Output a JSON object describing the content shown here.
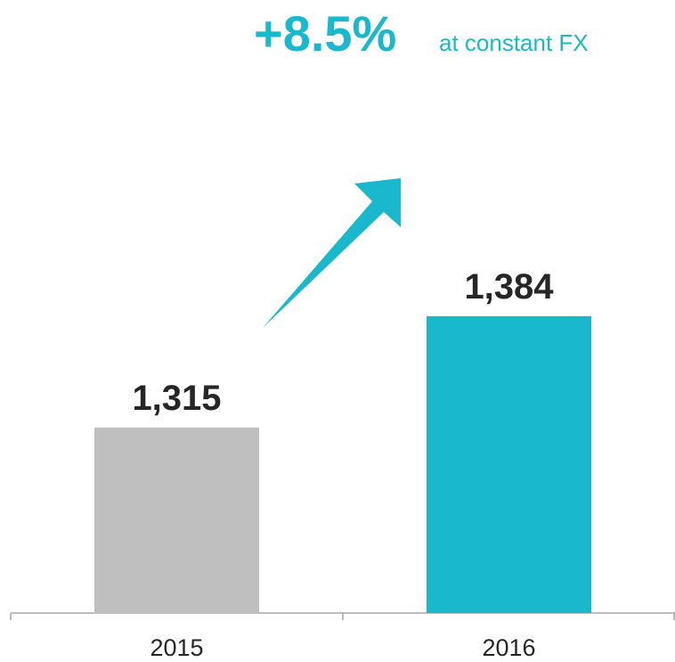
{
  "chart_data": {
    "type": "bar",
    "title": "+8.5%",
    "subtitle": "at constant FX",
    "categories": [
      "2015",
      "2016"
    ],
    "values": [
      1315,
      1384
    ],
    "value_labels": [
      "1,315",
      "1,384"
    ],
    "colors": [
      "#bfbfbf",
      "#1ab8cc"
    ],
    "ylim": [
      1200,
      1580
    ],
    "grid": false
  }
}
